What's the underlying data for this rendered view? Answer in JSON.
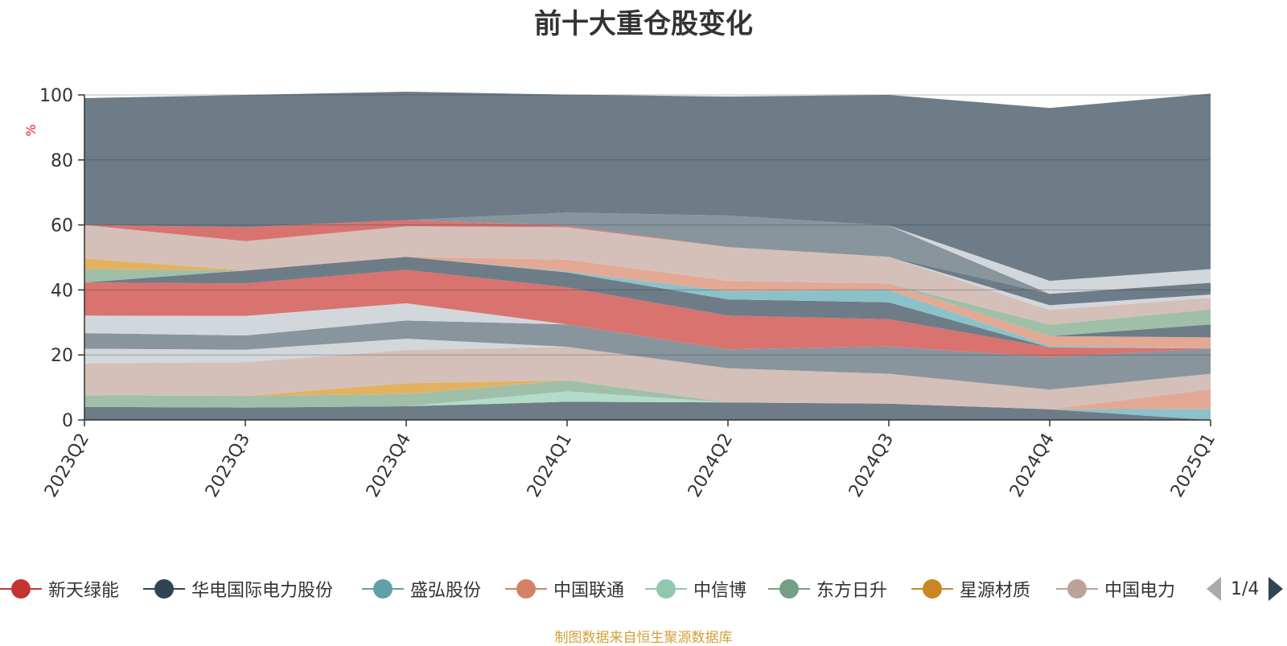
{
  "chart_data": {
    "type": "area",
    "title": "前十大重仓股变化",
    "ylabel": "%",
    "ylim": [
      0,
      100
    ],
    "yticks": [
      0,
      20,
      40,
      60,
      80,
      100
    ],
    "grid": true,
    "stacked": true,
    "categories": [
      "2023Q2",
      "2023Q3",
      "2023Q4",
      "2024Q1",
      "2024Q2",
      "2024Q3",
      "2024Q4",
      "2025Q1"
    ],
    "series": [
      {
        "name": "华电国际电力股份",
        "color": "#6e7c87",
        "values": [
          4,
          3.8,
          4.2,
          5.6,
          5.4,
          5,
          3.3,
          0
        ]
      },
      {
        "name": "盛弘股份",
        "color": "#8dc1c9",
        "values": [
          0,
          0,
          0,
          0,
          0,
          0,
          0,
          3.4
        ]
      },
      {
        "name": "中国联通",
        "color": "#e3a994",
        "values": [
          0,
          0,
          0,
          0,
          0,
          0,
          0,
          6
        ]
      },
      {
        "name": "中信博",
        "color": "#b3dcc8",
        "values": [
          0,
          0,
          0,
          3.2,
          0,
          0,
          0,
          0
        ]
      },
      {
        "name": "东方日升",
        "color": "#9fbfa8",
        "values": [
          3.6,
          3.6,
          3.8,
          3.4,
          0,
          0,
          0,
          0
        ]
      },
      {
        "name": "星源材质",
        "color": "#e2b261",
        "values": [
          0,
          0,
          3.3,
          0,
          0,
          0,
          0,
          0
        ]
      },
      {
        "name": "中国电力",
        "color": "#d5bfb9",
        "values": [
          9.8,
          10.4,
          10.2,
          10.3,
          10.5,
          9.2,
          6,
          4.8
        ]
      },
      {
        "name": "",
        "color": "#d2d7dc",
        "values": [
          4.5,
          3.8,
          3.5,
          0,
          0,
          0,
          0,
          0
        ]
      },
      {
        "name": "",
        "color": "#89959d",
        "values": [
          4.8,
          4.4,
          5.6,
          6.9,
          5.8,
          8.4,
          10,
          7.8
        ]
      },
      {
        "name": "",
        "color": "#d7bfb9",
        "values": [
          0,
          0,
          0,
          0,
          0,
          0,
          0,
          0
        ]
      },
      {
        "name": "",
        "color": "#d2d7dc",
        "values": [
          5.4,
          6,
          5.3,
          0,
          0,
          0,
          0,
          0
        ]
      },
      {
        "name": "新天绿能",
        "color": "#d87370",
        "values": [
          10.2,
          10,
          10.3,
          11.4,
          10.4,
          8.4,
          3,
          0
        ]
      },
      {
        "name": "",
        "color": "#6e7c87",
        "values": [
          0,
          4,
          4,
          4.6,
          5,
          5.2,
          0,
          0
        ]
      },
      {
        "name": "",
        "color": "#8dc1c9",
        "values": [
          0,
          0,
          0,
          0.3,
          2.5,
          3.8,
          0.5,
          0
        ]
      },
      {
        "name": "",
        "color": "#e3a994",
        "values": [
          0,
          0,
          0,
          3.6,
          3.2,
          2,
          3,
          3.4
        ]
      },
      {
        "name": "",
        "color": "#6e7c87",
        "values": [
          0,
          0,
          0,
          0,
          0,
          0,
          0,
          4
        ]
      },
      {
        "name": "",
        "color": "#9fbfa8",
        "values": [
          4,
          0,
          0,
          0,
          0,
          0,
          3.5,
          4.6
        ]
      },
      {
        "name": "",
        "color": "#e2b261",
        "values": [
          3.4,
          0,
          0,
          0,
          0,
          0,
          0,
          0
        ]
      },
      {
        "name": "",
        "color": "#d5bfb9",
        "values": [
          10.3,
          9,
          9.4,
          10,
          10.4,
          8.2,
          4.5,
          3.6
        ]
      },
      {
        "name": "",
        "color": "#d87370",
        "values": [
          0,
          4.3,
          1.9,
          0.4,
          0,
          0,
          0,
          0
        ]
      },
      {
        "name": "",
        "color": "#d2d7dc",
        "values": [
          0,
          0,
          0,
          0,
          0,
          0,
          1.5,
          1
        ]
      },
      {
        "name": "",
        "color": "#6e7c87",
        "values": [
          0,
          0,
          0,
          0,
          0,
          0,
          3.5,
          3.6
        ]
      },
      {
        "name": "",
        "color": "#89959d",
        "values": [
          0,
          0,
          0,
          4.1,
          9.7,
          9.6,
          0,
          0
        ]
      },
      {
        "name": "",
        "color": "#d2d7dc",
        "values": [
          0,
          0,
          0,
          0,
          0,
          0,
          4,
          4.2
        ]
      },
      {
        "name": "",
        "color": "#6e7c87",
        "values": [
          39,
          40.7,
          39.5,
          36.3,
          36.6,
          40.2,
          53.2,
          54
        ]
      }
    ]
  },
  "legend": {
    "items": [
      {
        "label": "新天绿能",
        "color": "#c23531"
      },
      {
        "label": "华电国际电力股份",
        "color": "#2f4554"
      },
      {
        "label": "盛弘股份",
        "color": "#61a0a8"
      },
      {
        "label": "中国联通",
        "color": "#d48265"
      },
      {
        "label": "中信博",
        "color": "#91c7ae"
      },
      {
        "label": "东方日升",
        "color": "#749f83"
      },
      {
        "label": "星源材质",
        "color": "#ca8622"
      },
      {
        "label": "中国电力",
        "color": "#bda29a"
      }
    ],
    "page_text": "1/4"
  },
  "source_note": "制图数据来自恒生聚源数据库"
}
